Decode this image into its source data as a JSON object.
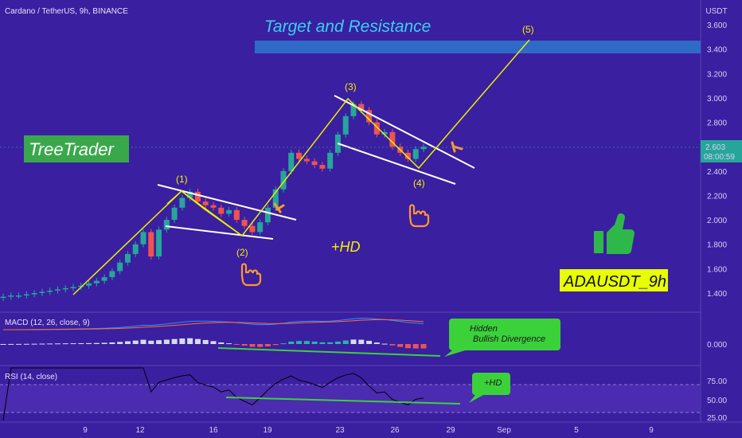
{
  "header": {
    "symbol": "Cardano / TetherUS, 9h, BINANCE",
    "currency": "USDT"
  },
  "annotations": {
    "target_label": "Target and Resistance",
    "brand_label": "TreeTrader",
    "ticker_label": "ADAUSDT_9h",
    "hd_main": "+HD",
    "macd_callout_line1": "Hidden",
    "macd_callout_line2": "Bullish Divergence",
    "rsi_callout": "+HD",
    "wave_labels": [
      "(1)",
      "(2)",
      "(3)",
      "(4)",
      "(5)"
    ]
  },
  "price_tag": {
    "value": "2.603",
    "countdown": "08:00:59"
  },
  "colors": {
    "background": "#3a1fa0",
    "up_candle": "#26a69a",
    "down_candle": "#ef5350",
    "wave_line": "#e8f000",
    "trend_lines": "#ffffff",
    "target_band": "#2f6fc9",
    "macd_line": "#2f8fff",
    "signal_line": "#ff6d3a",
    "rsi_line": "#000000",
    "divergence_line": "#3bd13b",
    "brand_badge": "#3aa84a",
    "ticker_badge": "#e8ff00"
  },
  "chart_data": {
    "type": "candlestick",
    "title": "Cardano / TetherUS, 9h, BINANCE",
    "price_axis": {
      "ticks": [
        "3.600",
        "3.400",
        "3.200",
        "3.000",
        "2.800",
        "2.600",
        "2.400",
        "2.200",
        "2.000",
        "1.800",
        "1.600",
        "1.400"
      ],
      "ylim": [
        1.3,
        3.7
      ],
      "unit": "USDT"
    },
    "x_axis": {
      "ticks": [
        "9",
        "12",
        "16",
        "19",
        "23",
        "26",
        "29",
        "Sep",
        "5",
        "9"
      ]
    },
    "candles_close_approx": [
      1.37,
      1.38,
      1.38,
      1.39,
      1.4,
      1.41,
      1.42,
      1.43,
      1.44,
      1.45,
      1.46,
      1.48,
      1.5,
      1.53,
      1.58,
      1.65,
      1.72,
      1.8,
      1.9,
      1.7,
      1.92,
      2.0,
      2.1,
      2.18,
      2.23,
      2.15,
      2.12,
      2.1,
      2.05,
      2.08,
      2.0,
      1.95,
      1.9,
      1.98,
      2.1,
      2.25,
      2.4,
      2.55,
      2.5,
      2.48,
      2.45,
      2.42,
      2.55,
      2.7,
      2.85,
      2.95,
      2.9,
      2.8,
      2.7,
      2.72,
      2.6,
      2.55,
      2.5,
      2.58,
      2.6
    ],
    "waves": [
      {
        "label": "(1)",
        "price": 2.25
      },
      {
        "label": "(2)",
        "price": 1.88
      },
      {
        "label": "(3)",
        "price": 3.0
      },
      {
        "label": "(4)",
        "price": 2.43
      },
      {
        "label": "(5)",
        "price": 3.5
      }
    ],
    "target_zone": [
      3.37,
      3.47
    ],
    "macd": {
      "label": "MACD (12, 26, close, 9)",
      "ticks": [
        "0.000"
      ]
    },
    "rsi": {
      "label": "RSI (14, close)",
      "ticks": [
        "75.00",
        "50.00",
        "25.00"
      ],
      "bands": [
        30,
        70
      ]
    }
  }
}
